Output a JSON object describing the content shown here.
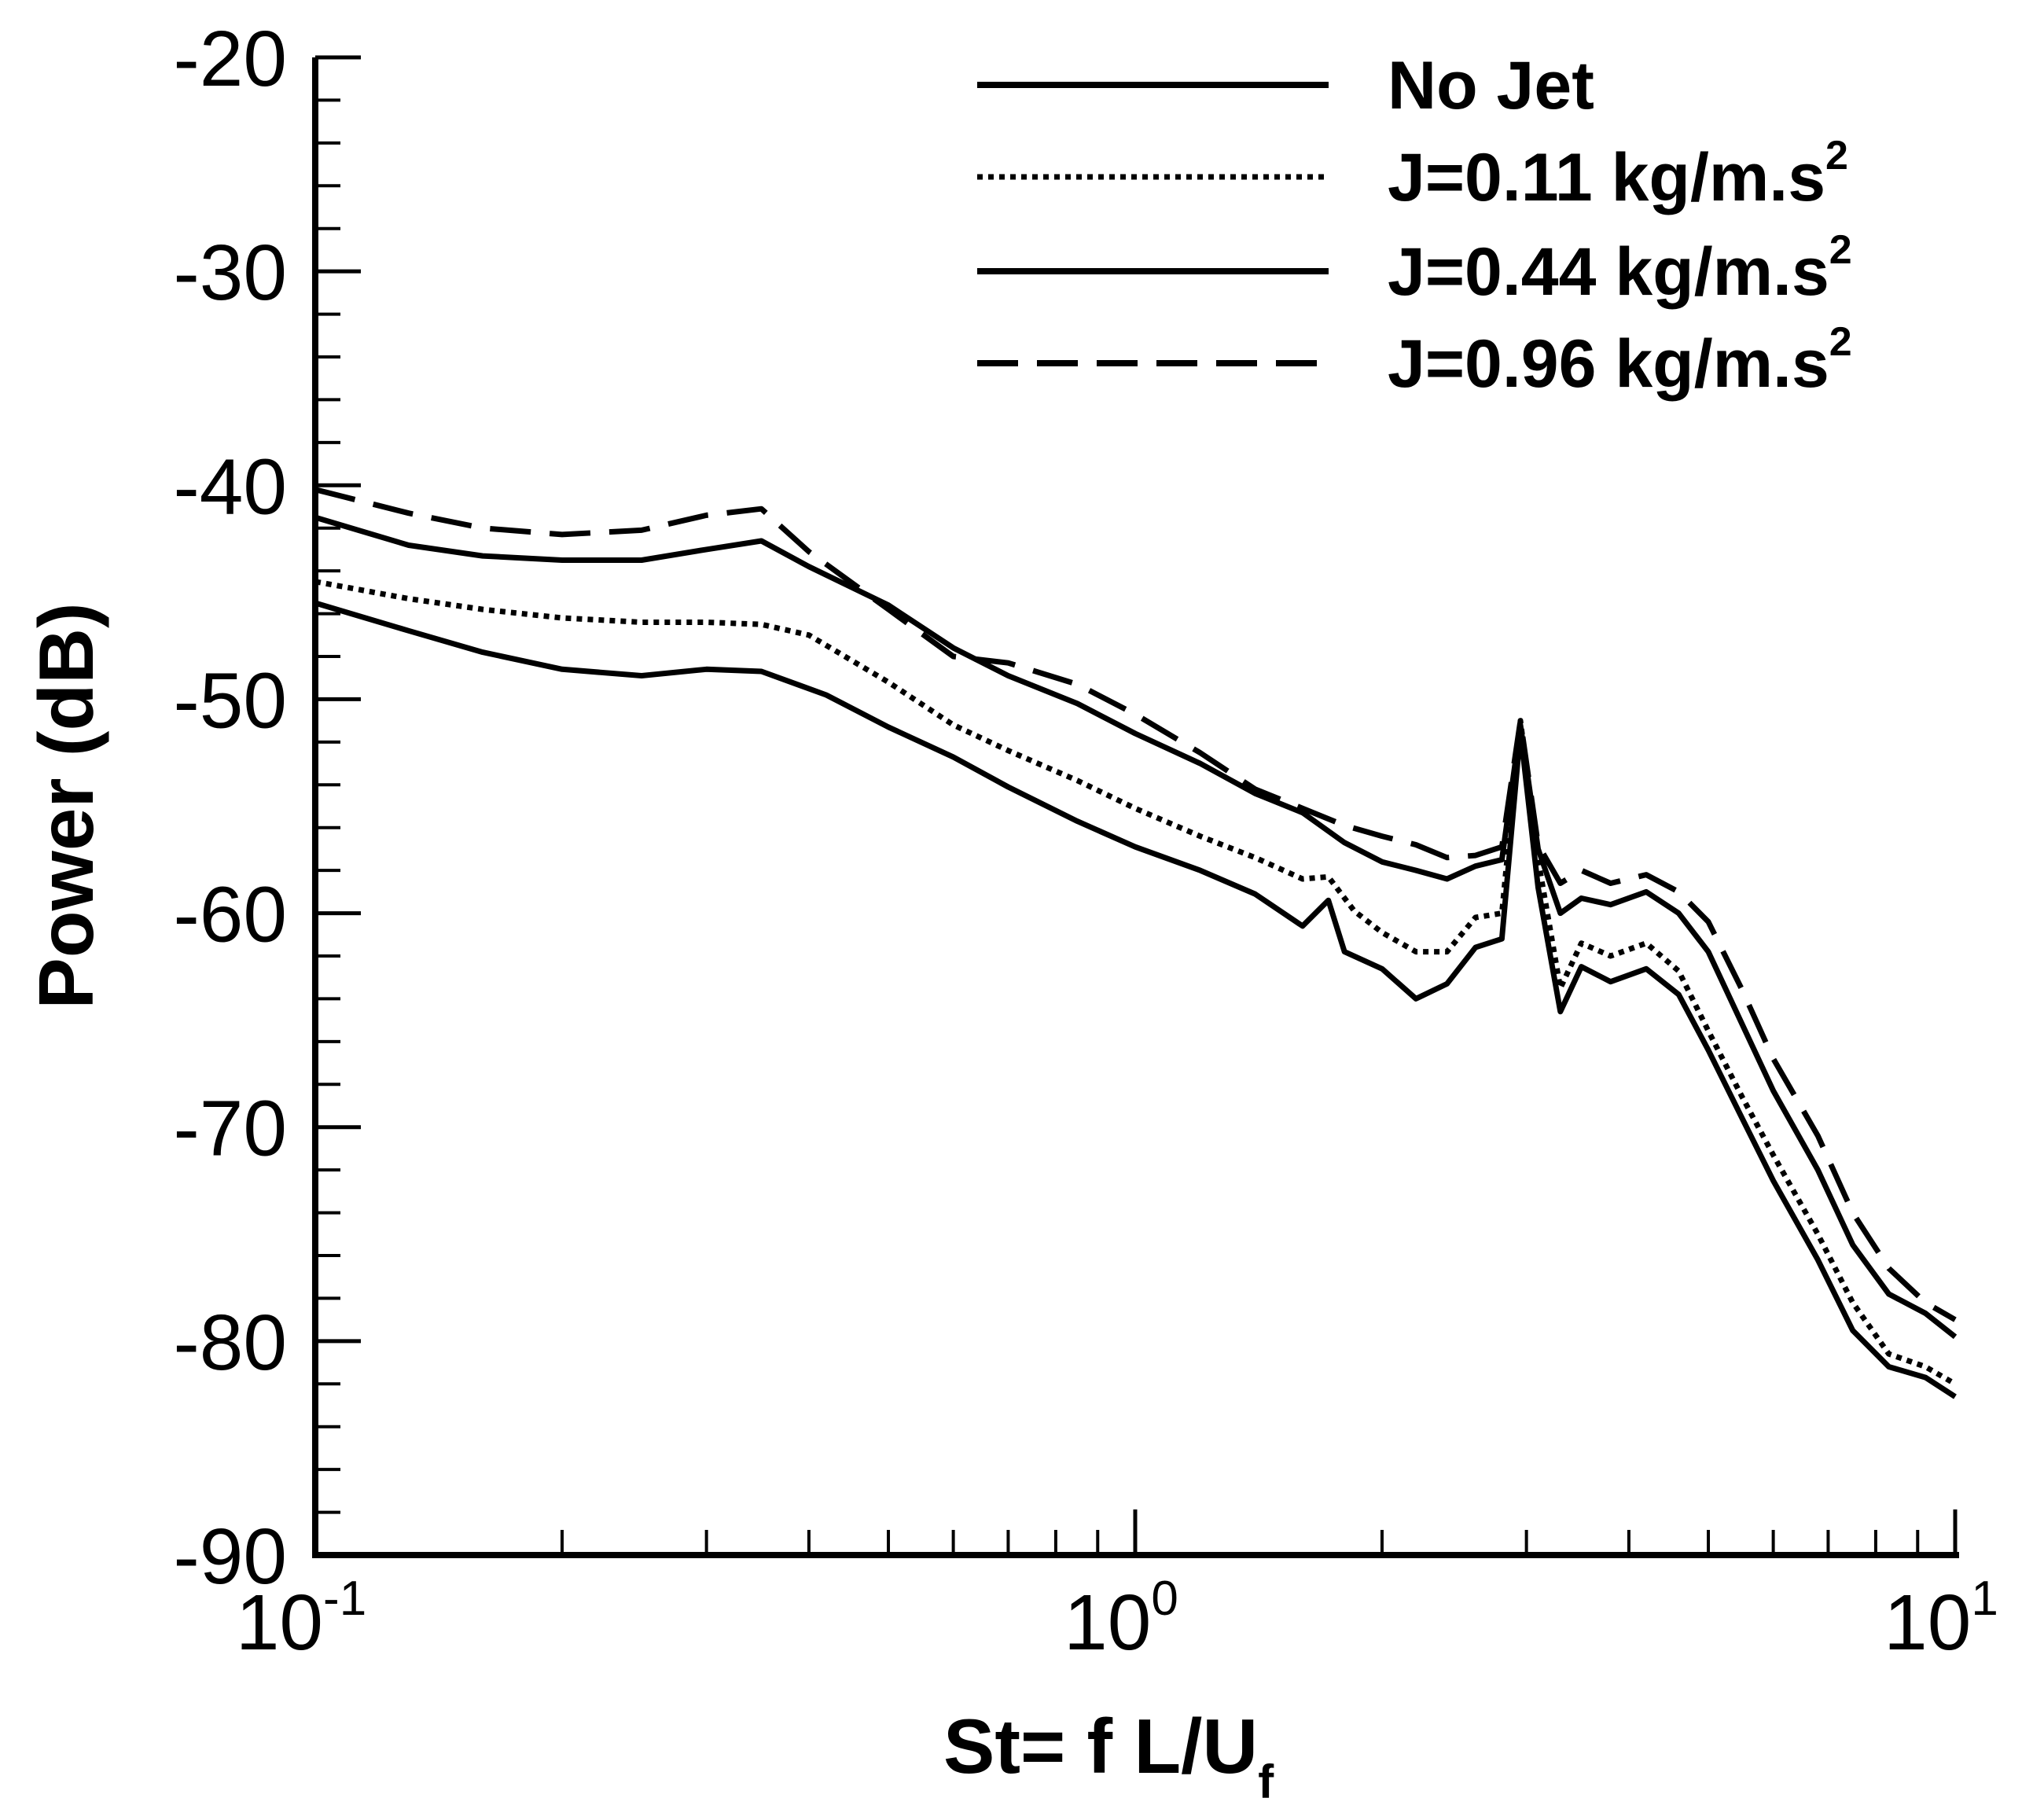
{
  "chart_data": {
    "type": "line",
    "title": "",
    "xlabel": "St= f L/U",
    "xlabel_subscript": "f",
    "ylabel": "Power (dB)",
    "xscale": "log",
    "xlim": [
      0.1,
      10
    ],
    "ylim": [
      -90,
      -20
    ],
    "x_tick_labels": [
      {
        "value": 0.1,
        "base": "10",
        "exp": "-1"
      },
      {
        "value": 1,
        "base": "10",
        "exp": "0"
      },
      {
        "value": 10,
        "base": "10",
        "exp": "1"
      }
    ],
    "y_ticks": [
      -90,
      -80,
      -70,
      -60,
      -50,
      -40,
      -30,
      -20
    ],
    "y_tick_labels": [
      "-90",
      "-80",
      "-70",
      "-60",
      "-50",
      "-40",
      "-30",
      "-20"
    ],
    "legend_position": "top-right",
    "series": [
      {
        "name": "No Jet",
        "label_main": "No Jet",
        "label_sup": "",
        "style": "solid",
        "x": [
          0.1,
          0.13,
          0.16,
          0.2,
          0.25,
          0.3,
          0.35,
          0.42,
          0.5,
          0.6,
          0.7,
          0.85,
          1.0,
          1.2,
          1.4,
          1.6,
          1.72,
          1.8,
          2.0,
          2.2,
          2.4,
          2.6,
          2.8,
          2.95,
          3.1,
          3.3,
          3.5,
          3.8,
          4.2,
          4.6,
          5.0,
          5.5,
          6.0,
          6.8,
          7.5,
          8.3,
          9.2,
          10.0
        ],
        "values": [
          -45.5,
          -46.8,
          -47.8,
          -48.6,
          -48.9,
          -48.6,
          -48.7,
          -49.8,
          -51.3,
          -52.7,
          -54.1,
          -55.7,
          -56.9,
          -58.0,
          -59.1,
          -60.6,
          -59.4,
          -61.8,
          -62.6,
          -64.0,
          -63.3,
          -61.6,
          -61.2,
          -51.5,
          -58.8,
          -64.6,
          -62.5,
          -63.2,
          -62.6,
          -63.8,
          -66.4,
          -69.6,
          -72.5,
          -76.2,
          -79.5,
          -81.2,
          -81.7,
          -82.6
        ]
      },
      {
        "name": "J=0.11 kg/m.s2",
        "label_main": "J=0.11 kg/m.s",
        "label_sup": "2",
        "style": "dotted",
        "x": [
          0.1,
          0.13,
          0.16,
          0.2,
          0.25,
          0.3,
          0.35,
          0.4,
          0.5,
          0.6,
          0.7,
          0.85,
          1.0,
          1.2,
          1.4,
          1.6,
          1.72,
          1.85,
          2.0,
          2.2,
          2.4,
          2.6,
          2.8,
          2.95,
          3.1,
          3.3,
          3.5,
          3.8,
          4.2,
          4.6,
          5.0,
          5.5,
          6.0,
          6.8,
          7.5,
          8.3,
          9.2,
          10.0
        ],
        "values": [
          -44.5,
          -45.3,
          -45.8,
          -46.2,
          -46.4,
          -46.4,
          -46.5,
          -47.0,
          -49.2,
          -51.2,
          -52.4,
          -53.8,
          -55.1,
          -56.4,
          -57.4,
          -58.4,
          -58.3,
          -59.9,
          -60.9,
          -61.8,
          -61.8,
          -60.2,
          -60.0,
          -51.0,
          -57.5,
          -63.5,
          -61.4,
          -62.0,
          -61.4,
          -62.7,
          -65.5,
          -68.6,
          -71.3,
          -75.0,
          -78.2,
          -80.6,
          -81.2,
          -82.0
        ]
      },
      {
        "name": "J=0.44 kg/m.s2",
        "label_main": "J=0.44 kg/m.s",
        "label_sup": "2",
        "style": "solid",
        "x": [
          0.1,
          0.13,
          0.16,
          0.2,
          0.25,
          0.3,
          0.35,
          0.4,
          0.5,
          0.6,
          0.7,
          0.85,
          1.0,
          1.2,
          1.4,
          1.6,
          1.8,
          2.0,
          2.2,
          2.4,
          2.6,
          2.8,
          2.95,
          3.1,
          3.3,
          3.5,
          3.8,
          4.2,
          4.6,
          5.0,
          5.5,
          6.0,
          6.8,
          7.5,
          8.3,
          9.2,
          10.0
        ],
        "values": [
          -41.5,
          -42.8,
          -43.3,
          -43.5,
          -43.5,
          -43.0,
          -42.6,
          -43.8,
          -45.6,
          -47.6,
          -48.9,
          -50.2,
          -51.6,
          -53.0,
          -54.4,
          -55.3,
          -56.7,
          -57.6,
          -58.0,
          -58.4,
          -57.8,
          -57.5,
          -51.2,
          -57.0,
          -60.0,
          -59.3,
          -59.6,
          -59.0,
          -60.0,
          -61.8,
          -65.2,
          -68.3,
          -72.0,
          -75.5,
          -77.8,
          -78.7,
          -79.8
        ]
      },
      {
        "name": "J=0.96 kg/m.s2",
        "label_main": "J=0.96 kg/m.s",
        "label_sup": "2",
        "style": "dashed",
        "x": [
          0.1,
          0.13,
          0.16,
          0.2,
          0.25,
          0.3,
          0.35,
          0.4,
          0.5,
          0.6,
          0.7,
          0.85,
          1.0,
          1.2,
          1.4,
          1.6,
          1.8,
          2.0,
          2.2,
          2.4,
          2.6,
          2.8,
          2.95,
          3.1,
          3.3,
          3.5,
          3.8,
          4.2,
          4.6,
          5.0,
          5.5,
          6.0,
          6.8,
          7.5,
          8.3,
          9.2,
          10.0
        ],
        "values": [
          -40.2,
          -41.3,
          -42.0,
          -42.3,
          -42.1,
          -41.4,
          -41.1,
          -43.1,
          -45.8,
          -48.0,
          -48.3,
          -49.3,
          -50.7,
          -52.5,
          -54.2,
          -55.1,
          -55.9,
          -56.4,
          -56.8,
          -57.4,
          -57.3,
          -56.9,
          -51.0,
          -56.8,
          -58.6,
          -58.0,
          -58.6,
          -58.2,
          -59.0,
          -60.4,
          -63.6,
          -66.8,
          -70.4,
          -74.0,
          -76.6,
          -78.2,
          -79.0
        ]
      }
    ]
  }
}
